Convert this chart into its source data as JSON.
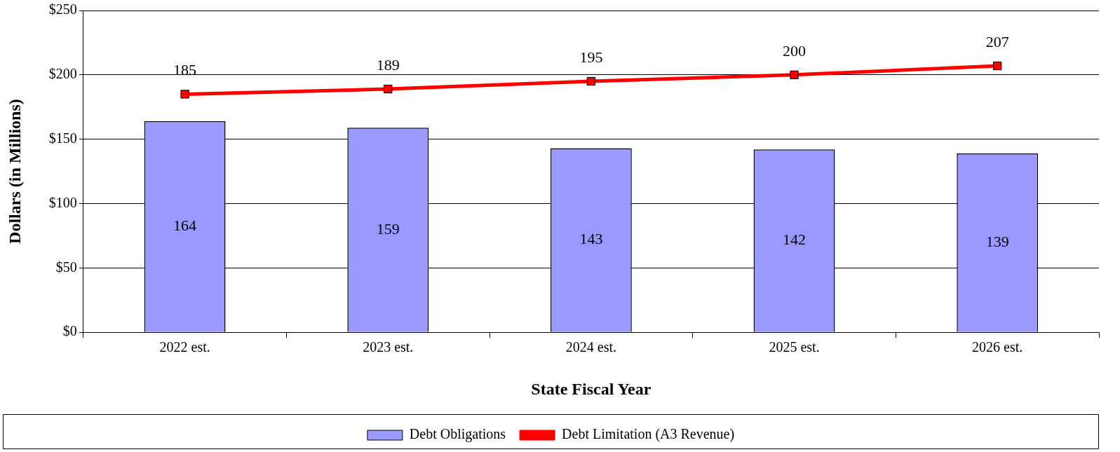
{
  "chart_data": {
    "type": "bar",
    "xlabel": "State Fiscal Year",
    "ylabel": "Dollars (in Millions)",
    "categories": [
      "2022 est.",
      "2023 est.",
      "2024 est.",
      "2025 est.",
      "2026 est."
    ],
    "series": [
      {
        "name": "Debt Obligations",
        "color": "#9999ff",
        "values": [
          164,
          159,
          143,
          142,
          139
        ]
      },
      {
        "name": "Debt Limitation (A3 Revenue)",
        "type": "line",
        "color": "#ff0000",
        "values": [
          185,
          189,
          195,
          200,
          207
        ]
      }
    ],
    "ylim": [
      0,
      250
    ],
    "yticks": [
      {
        "value": 0,
        "label": "$0"
      },
      {
        "value": 50,
        "label": "$50"
      },
      {
        "value": 100,
        "label": "$100"
      },
      {
        "value": 150,
        "label": "$150"
      },
      {
        "value": 200,
        "label": "$200"
      },
      {
        "value": 250,
        "label": "$250"
      }
    ],
    "grid": "y",
    "legend": "bottom",
    "marker": "square",
    "line_style": "solid",
    "data_labels": true
  }
}
